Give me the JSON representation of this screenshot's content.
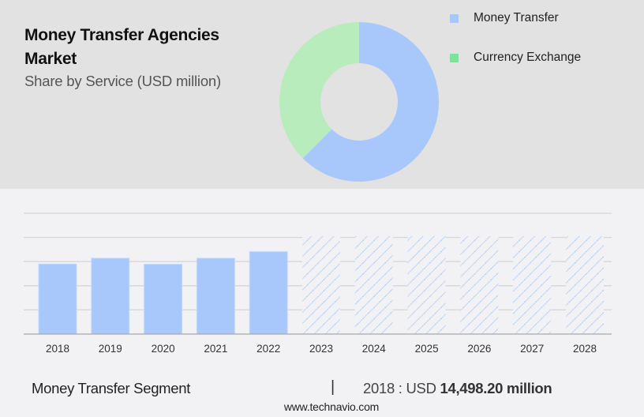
{
  "header": {
    "title": "Money Transfer Agencies Market",
    "subtitle": "Share by Service (USD million)"
  },
  "legend": {
    "items": [
      {
        "label": "Money Transfer",
        "color": "#a8c8fb"
      },
      {
        "label": "Currency Exchange",
        "color": "#7ee29a"
      }
    ]
  },
  "footer": {
    "segment_label": "Money Transfer Segment",
    "separator": "|",
    "year_prefix": "2018 : USD",
    "value": "14,498.20 million",
    "website": "www.technavio.com"
  },
  "colors": {
    "top_background": "#e2e2e2",
    "bottom_background": "#f2f2f4",
    "bar_fill": "#a8c8fb",
    "donut_money_transfer": "#a8c8fb",
    "donut_currency_exchange": "#b9ecbc",
    "gridline": "#d6d6d8",
    "baseline": "#a8a8a8"
  },
  "chart_data": [
    {
      "type": "pie",
      "subtype": "donut",
      "title": "Money Transfer Agencies Market",
      "subtitle": "Share by Service (USD million)",
      "categories": [
        "Money Transfer",
        "Currency Exchange"
      ],
      "values": [
        62.5,
        37.5
      ],
      "unit": "% share (estimated from arc)",
      "legend_position": "right"
    },
    {
      "type": "bar",
      "title": "Money Transfer Segment",
      "categories": [
        "2018",
        "2019",
        "2020",
        "2021",
        "2022",
        "2023",
        "2024",
        "2025",
        "2026",
        "2027",
        "2028"
      ],
      "values": [
        14498.2,
        15700,
        14450,
        15700,
        17050,
        null,
        null,
        null,
        null,
        null,
        null
      ],
      "forecast_placeholder_height": 20250,
      "forecast_years": [
        "2023",
        "2024",
        "2025",
        "2026",
        "2027",
        "2028"
      ],
      "xlabel": "",
      "ylabel": "USD million",
      "ylim": [
        0,
        25000
      ],
      "gridlines": [
        5000,
        10000,
        15000,
        20000,
        25000
      ],
      "grid": true,
      "y_tick_labels_visible": false,
      "annotation": "2018 : USD 14,498.20 million"
    }
  ]
}
